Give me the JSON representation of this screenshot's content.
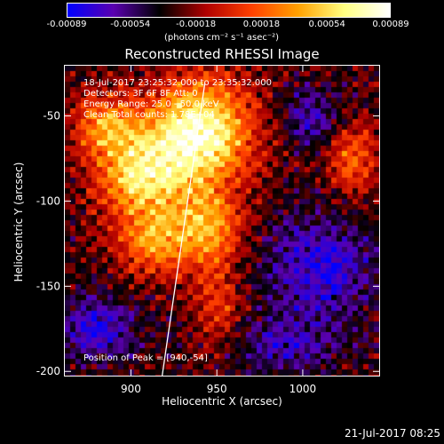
{
  "colorbar": {
    "ticks": [
      "-0.00089",
      "-0.00054",
      "-0.00018",
      "0.00018",
      "0.00054",
      "0.00089"
    ],
    "tick_values": [
      -0.00089,
      -0.00054,
      -0.00018,
      0.00018,
      0.00054,
      0.00089
    ],
    "units_label": "(photons cm⁻² s⁻¹ asec⁻²)",
    "colors": [
      "#0000ff",
      "#5a00b0",
      "#000000",
      "#b00000",
      "#ff4000",
      "#ffa000",
      "#ffff80",
      "#ffffff"
    ]
  },
  "chart_data": {
    "type": "heatmap",
    "title": "Reconstructed RHESSI Image",
    "xlabel": "Heliocentric X (arcsec)",
    "ylabel": "Heliocentric Y (arcsec)",
    "xlim": [
      861,
      1045
    ],
    "ylim": [
      -203,
      -20
    ],
    "xticks": [
      900,
      950,
      1000
    ],
    "yticks": [
      -50,
      -100,
      -150,
      -200
    ],
    "annotations": [
      "18-Jul-2017 23:25:32.000 to 23:35:32.000",
      "Detectors: 3F 6F 8F  Att: 0",
      "Energy Range: 25.0 - 50.0 keV",
      "Clean      Total counts: 1.78E+04",
      "Position of Peak = [940,-54]"
    ],
    "peak": [
      940,
      -54
    ],
    "limb_line": [
      [
        918,
        -203
      ],
      [
        943,
        -30
      ]
    ]
  },
  "footer": {
    "date": "21-Jul-2017 08:25"
  }
}
